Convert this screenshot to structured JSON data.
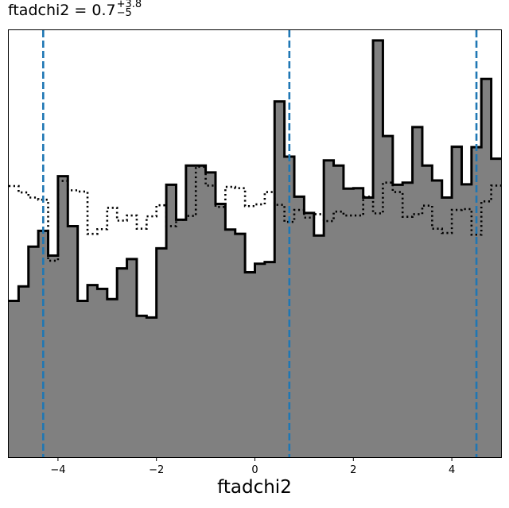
{
  "chart_data": {
    "type": "histogram",
    "title": {
      "name": "ftadchi2",
      "equals": "=",
      "value": "0.7",
      "upper": "+3.8",
      "lower": "−5"
    },
    "xlabel": "ftadchi2",
    "xlim": [
      -5,
      5
    ],
    "ylim": [
      0,
      1
    ],
    "yticks_shown": false,
    "grid": false,
    "xticks": [
      {
        "value": -4,
        "label": "−4"
      },
      {
        "value": -2,
        "label": "−2"
      },
      {
        "value": 0,
        "label": "0"
      },
      {
        "value": 2,
        "label": "2"
      },
      {
        "value": 4,
        "label": "4"
      }
    ],
    "bin_edges_range": [
      -5,
      5
    ],
    "bin_count": 50,
    "series": [
      {
        "style": "filled-step",
        "fill": "#808080",
        "edge": "#000000",
        "values": [
          0.366,
          0.4,
          0.493,
          0.53,
          0.472,
          0.658,
          0.541,
          0.366,
          0.403,
          0.394,
          0.37,
          0.442,
          0.464,
          0.331,
          0.327,
          0.489,
          0.638,
          0.556,
          0.683,
          0.683,
          0.667,
          0.593,
          0.533,
          0.523,
          0.433,
          0.453,
          0.457,
          0.833,
          0.704,
          0.61,
          0.572,
          0.519,
          0.695,
          0.683,
          0.629,
          0.63,
          0.608,
          0.976,
          0.752,
          0.638,
          0.643,
          0.773,
          0.683,
          0.648,
          0.608,
          0.727,
          0.639,
          0.726,
          0.886,
          0.699
        ]
      },
      {
        "style": "dotted-step",
        "edge": "#000000",
        "values": [
          0.635,
          0.62,
          0.608,
          0.603,
          0.46,
          0.647,
          0.625,
          0.622,
          0.523,
          0.534,
          0.584,
          0.554,
          0.566,
          0.535,
          0.564,
          0.59,
          0.541,
          0.556,
          0.565,
          0.68,
          0.636,
          0.586,
          0.633,
          0.63,
          0.588,
          0.592,
          0.621,
          0.591,
          0.551,
          0.579,
          0.561,
          0.569,
          0.553,
          0.575,
          0.566,
          0.566,
          0.61,
          0.571,
          0.643,
          0.621,
          0.563,
          0.569,
          0.589,
          0.535,
          0.525,
          0.579,
          0.581,
          0.521,
          0.599,
          0.636
        ]
      }
    ],
    "vlines": {
      "values": [
        -4.3,
        0.7,
        4.5
      ],
      "color": "#1f77b4",
      "style": "dashed"
    }
  }
}
